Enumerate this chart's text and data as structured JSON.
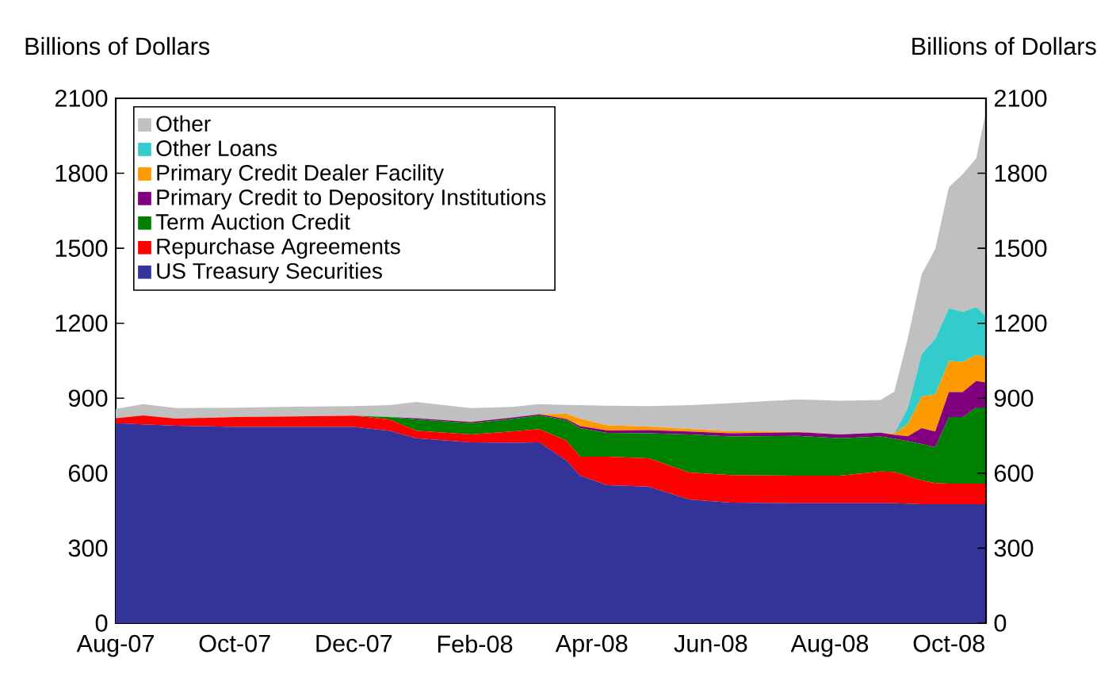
{
  "chart_data": {
    "type": "area",
    "stacked": true,
    "ylabel": "Billions of Dollars",
    "y2label": "Billions of Dollars",
    "x": [
      "2007-08-01",
      "2007-08-15",
      "2007-09-01",
      "2007-10-01",
      "2007-11-01",
      "2007-12-01",
      "2007-12-19",
      "2008-01-02",
      "2008-01-30",
      "2008-02-20",
      "2008-03-05",
      "2008-03-19",
      "2008-03-26",
      "2008-04-09",
      "2008-04-30",
      "2008-05-21",
      "2008-06-11",
      "2008-07-16",
      "2008-08-06",
      "2008-08-27",
      "2008-09-03",
      "2008-09-10",
      "2008-09-17",
      "2008-09-24",
      "2008-10-01",
      "2008-10-08",
      "2008-10-15",
      "2008-10-20"
    ],
    "series": [
      {
        "name": "US Treasury Securities",
        "color": "#333399",
        "values": [
          800,
          795,
          790,
          785,
          785,
          785,
          770,
          740,
          723,
          722,
          723,
          650,
          590,
          552,
          546,
          495,
          482,
          480,
          480,
          480,
          480,
          478,
          476,
          476,
          476,
          476,
          476,
          476
        ]
      },
      {
        "name": "Repurchase Agreements",
        "color": "#ff0000",
        "values": [
          20,
          36,
          28,
          40,
          42,
          45,
          45,
          30,
          32,
          45,
          53,
          80,
          76,
          114,
          114,
          108,
          110,
          110,
          110,
          127,
          125,
          110,
          95,
          85,
          82,
          82,
          82,
          82
        ]
      },
      {
        "name": "Term Auction Credit",
        "color": "#008000",
        "values": [
          0,
          0,
          0,
          0,
          0,
          0,
          10,
          45,
          45,
          50,
          55,
          82,
          114,
          95,
          100,
          152,
          155,
          159,
          150,
          140,
          133,
          140,
          146,
          143,
          267,
          267,
          305,
          305
        ]
      },
      {
        "name": "Primary Credit to Depository Institutions",
        "color": "#800080",
        "values": [
          0,
          0,
          0,
          0,
          0,
          0,
          0,
          5,
          5,
          5,
          5,
          5,
          8,
          10,
          12,
          12,
          13,
          15,
          15,
          15,
          15,
          20,
          63,
          63,
          100,
          100,
          106,
          100
        ]
      },
      {
        "name": "Primary Credit Dealer Facility",
        "color": "#ff9900",
        "values": [
          0,
          0,
          0,
          0,
          0,
          0,
          0,
          0,
          0,
          0,
          0,
          20,
          30,
          20,
          15,
          10,
          8,
          2,
          0,
          0,
          5,
          50,
          127,
          148,
          123,
          120,
          105,
          100
        ]
      },
      {
        "name": "Other Loans",
        "color": "#33cccc",
        "values": [
          0,
          0,
          0,
          0,
          0,
          0,
          0,
          0,
          0,
          0,
          0,
          0,
          0,
          0,
          0,
          0,
          0,
          0,
          0,
          0,
          0,
          63,
          169,
          222,
          211,
          201,
          190,
          165
        ]
      },
      {
        "name": "Other",
        "color": "#c0c0c0",
        "values": [
          37,
          45,
          42,
          37,
          39,
          38,
          47,
          65,
          55,
          43,
          40,
          36,
          54,
          79,
          81,
          95,
          112,
          129,
          135,
          131,
          168,
          281,
          320,
          360,
          486,
          550,
          596,
          822
        ]
      }
    ],
    "xlim": [
      "2007-08-01",
      "2008-10-20"
    ],
    "xticks": [
      {
        "value": "2007-08-01",
        "label": "Aug-07"
      },
      {
        "value": "2007-09-10",
        "label": null
      },
      {
        "value": "2007-10-01",
        "label": "Oct-07"
      },
      {
        "value": "2007-10-22",
        "label": null
      },
      {
        "value": "2007-12-01",
        "label": "Dec-07"
      },
      {
        "value": "2008-01-11",
        "label": null
      },
      {
        "value": "2008-02-01",
        "label": "Feb-08"
      },
      {
        "value": "2008-02-20",
        "label": null
      },
      {
        "value": "2008-04-01",
        "label": "Apr-08"
      },
      {
        "value": "2008-05-12",
        "label": null
      },
      {
        "value": "2008-06-01",
        "label": "Jun-08"
      },
      {
        "value": "2008-06-21",
        "label": null
      },
      {
        "value": "2008-08-01",
        "label": "Aug-08"
      },
      {
        "value": "2008-09-11",
        "label": null
      },
      {
        "value": "2008-10-01",
        "label": "Oct-08"
      }
    ],
    "ylim": [
      0,
      2100
    ],
    "yticks": [
      0,
      300,
      600,
      900,
      1200,
      1500,
      1800,
      2100
    ],
    "y2lim": [
      0,
      2100
    ],
    "y2ticks": [
      0,
      300,
      600,
      900,
      1200,
      1500,
      1800,
      2100
    ],
    "legend": "top left"
  }
}
